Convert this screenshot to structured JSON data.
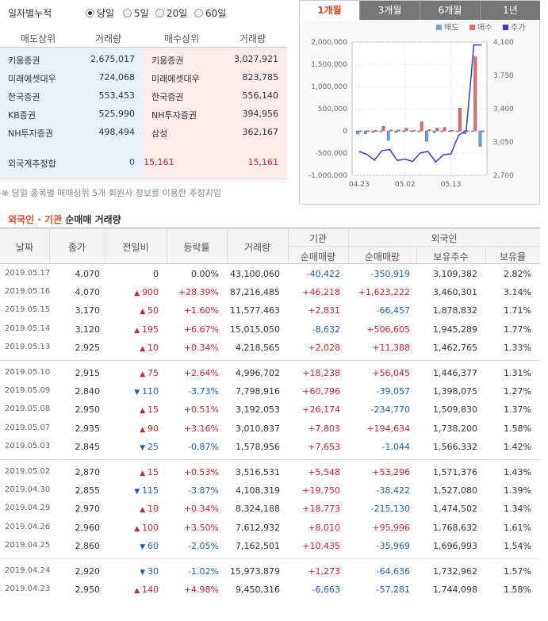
{
  "period": {
    "title": "일자별누적",
    "options": [
      {
        "label": "당일",
        "selected": true
      },
      {
        "label": "5일",
        "selected": false
      },
      {
        "label": "20일",
        "selected": false
      },
      {
        "label": "60일",
        "selected": false
      }
    ]
  },
  "trade": {
    "headers": [
      "매도상위",
      "거래량",
      "매수상위",
      "거래량"
    ],
    "rows": [
      {
        "sell": "키움증권",
        "sell_vol": "2,675,017",
        "buy": "키움증권",
        "buy_vol": "3,027,921"
      },
      {
        "sell": "미래에셋대우",
        "sell_vol": "724,068",
        "buy": "미래에셋대우",
        "buy_vol": "823,785"
      },
      {
        "sell": "한국증권",
        "sell_vol": "553,453",
        "buy": "한국증권",
        "buy_vol": "556,140"
      },
      {
        "sell": "KB증권",
        "sell_vol": "525,990",
        "buy": "NH투자증권",
        "buy_vol": "394,956"
      },
      {
        "sell": "NH투자증권",
        "sell_vol": "498,494",
        "buy": "삼성",
        "buy_vol": "362,167"
      }
    ],
    "foreign": {
      "label": "외국계추정합",
      "sell_vol": "0",
      "buy_mid": "15,161",
      "buy_vol": "15,161"
    }
  },
  "footnote": "※ 당일 종목별 매매상위 5개 회원사 정보를 이용한 추정치임",
  "chart": {
    "tabs": [
      {
        "label": "1개월",
        "active": true
      },
      {
        "label": "3개월",
        "active": false
      },
      {
        "label": "6개월",
        "active": false
      },
      {
        "label": "1년",
        "active": false
      }
    ],
    "legend": [
      {
        "name": "매도",
        "color": "#6aa3e0"
      },
      {
        "name": "매수",
        "color": "#e86a6a"
      },
      {
        "name": "주가",
        "color": "#3a3ae0"
      }
    ]
  },
  "chart_data": {
    "type": "bar",
    "x": [
      "04.23",
      "04.24",
      "04.25",
      "04.26",
      "04.29",
      "04.30",
      "05.02",
      "05.03",
      "05.07",
      "05.08",
      "05.09",
      "05.10",
      "05.13",
      "05.14",
      "05.15",
      "05.16",
      "05.17"
    ],
    "x_tick_labels": [
      "04.23",
      "05.02",
      "05.13"
    ],
    "series": [
      {
        "name": "매도",
        "type": "bar",
        "values": [
          -70000,
          -65000,
          -36000,
          0,
          -215000,
          -38000,
          0,
          -1000,
          0,
          -235000,
          -39000,
          0,
          0,
          0,
          -66000,
          0,
          -351000
        ]
      },
      {
        "name": "매수",
        "type": "bar",
        "values": [
          0,
          1000,
          10000,
          104000,
          19000,
          20000,
          59000,
          8000,
          202000,
          26000,
          61000,
          74000,
          13000,
          515000,
          3000,
          1669000,
          0
        ]
      },
      {
        "name": "주가",
        "type": "line",
        "values": [
          2950,
          2920,
          2860,
          2960,
          2970,
          2855,
          2870,
          2845,
          2935,
          2950,
          2840,
          2915,
          2925,
          3120,
          3170,
          4070,
          4070
        ]
      }
    ],
    "left_axis": {
      "ticks": [
        "2,000,000",
        "1,500,000",
        "1,000,000",
        "500,000",
        "0",
        "-500,000",
        "-1,000,000"
      ],
      "min": -1000000,
      "max": 2000000
    },
    "right_axis": {
      "ticks": [
        "4,100",
        "3,750",
        "3,400",
        "3,050",
        "2,700"
      ],
      "min": 2700,
      "max": 4100
    },
    "grid": true,
    "legend_position": "top-right"
  },
  "section": {
    "title_a": "외국인 · 기관",
    "title_b": " 순매매 거래량"
  },
  "table": {
    "headers": {
      "date": "날짜",
      "close": "종가",
      "change": "전일비",
      "rate": "등락률",
      "volume": "거래량",
      "inst_group": "기관",
      "inst_net": "순매매량",
      "frgn_group": "외국인",
      "frgn_net": "순매매량",
      "frgn_hold": "보유주수",
      "frgn_ratio": "보유율"
    },
    "rows": [
      {
        "date": "2019.05.17",
        "close": "4,070",
        "dir": "none",
        "change": "0",
        "rate": "0.00%",
        "volume": "43,100,060",
        "inst": "-40,422",
        "frgn": "-350,919",
        "hold": "3,109,382",
        "ratio": "2.82%"
      },
      {
        "date": "2019.05.16",
        "close": "4,070",
        "dir": "up",
        "change": "900",
        "rate": "+28.39%",
        "volume": "87,216,485",
        "inst": "+46,218",
        "frgn": "+1,623,222",
        "hold": "3,460,301",
        "ratio": "3.14%"
      },
      {
        "date": "2019.05.15",
        "close": "3,170",
        "dir": "up",
        "change": "50",
        "rate": "+1.60%",
        "volume": "11,577,463",
        "inst": "+2,831",
        "frgn": "-66,457",
        "hold": "1,878,832",
        "ratio": "1.71%"
      },
      {
        "date": "2019.05.14",
        "close": "3,120",
        "dir": "up",
        "change": "195",
        "rate": "+6.67%",
        "volume": "15,015,050",
        "inst": "-8,632",
        "frgn": "+506,605",
        "hold": "1,945,289",
        "ratio": "1.77%"
      },
      {
        "date": "2019.05.13",
        "close": "2,925",
        "dir": "up",
        "change": "10",
        "rate": "+0.34%",
        "volume": "4,218,565",
        "inst": "+2,028",
        "frgn": "+11,388",
        "hold": "1,462,765",
        "ratio": "1.33%"
      },
      {
        "date": "2019.05.10",
        "close": "2,915",
        "dir": "up",
        "change": "75",
        "rate": "+2.64%",
        "volume": "4,996,702",
        "inst": "+18,238",
        "frgn": "+56,045",
        "hold": "1,446,377",
        "ratio": "1.31%"
      },
      {
        "date": "2019.05.09",
        "close": "2,840",
        "dir": "down",
        "change": "110",
        "rate": "-3.73%",
        "volume": "7,798,916",
        "inst": "+60,796",
        "frgn": "-39,057",
        "hold": "1,398,075",
        "ratio": "1.27%"
      },
      {
        "date": "2019.05.08",
        "close": "2,950",
        "dir": "up",
        "change": "15",
        "rate": "+0.51%",
        "volume": "3,192,053",
        "inst": "+26,174",
        "frgn": "-234,770",
        "hold": "1,509,830",
        "ratio": "1.37%"
      },
      {
        "date": "2019.05.07",
        "close": "2,935",
        "dir": "up",
        "change": "90",
        "rate": "+3.16%",
        "volume": "3,010,837",
        "inst": "+7,803",
        "frgn": "+194,634",
        "hold": "1,738,200",
        "ratio": "1.58%"
      },
      {
        "date": "2019.05.03",
        "close": "2,845",
        "dir": "down",
        "change": "25",
        "rate": "-0.87%",
        "volume": "1,578,956",
        "inst": "+7,653",
        "frgn": "-1,044",
        "hold": "1,566,332",
        "ratio": "1.42%"
      },
      {
        "date": "2019.05.02",
        "close": "2,870",
        "dir": "up",
        "change": "15",
        "rate": "+0.53%",
        "volume": "3,516,531",
        "inst": "+5,548",
        "frgn": "+53,296",
        "hold": "1,571,376",
        "ratio": "1.43%"
      },
      {
        "date": "2019.04.30",
        "close": "2,855",
        "dir": "down",
        "change": "115",
        "rate": "-3.87%",
        "volume": "4,108,319",
        "inst": "+19,750",
        "frgn": "-38,422",
        "hold": "1,527,080",
        "ratio": "1.39%"
      },
      {
        "date": "2019.04.29",
        "close": "2,970",
        "dir": "up",
        "change": "10",
        "rate": "+0.34%",
        "volume": "8,324,188",
        "inst": "+18,773",
        "frgn": "-215,130",
        "hold": "1,474,502",
        "ratio": "1.34%"
      },
      {
        "date": "2019.04.26",
        "close": "2,960",
        "dir": "up",
        "change": "100",
        "rate": "+3.50%",
        "volume": "7,612,932",
        "inst": "+8,010",
        "frgn": "+95,996",
        "hold": "1,768,632",
        "ratio": "1.61%"
      },
      {
        "date": "2019.04.25",
        "close": "2,860",
        "dir": "down",
        "change": "60",
        "rate": "-2.05%",
        "volume": "7,162,501",
        "inst": "+10,435",
        "frgn": "-35,969",
        "hold": "1,696,993",
        "ratio": "1.54%"
      },
      {
        "date": "2019.04.24",
        "close": "2,920",
        "dir": "down",
        "change": "30",
        "rate": "-1.02%",
        "volume": "15,973,879",
        "inst": "+1,273",
        "frgn": "-64,636",
        "hold": "1,732,962",
        "ratio": "1.57%"
      },
      {
        "date": "2019.04.23",
        "close": "2,950",
        "dir": "up",
        "change": "140",
        "rate": "+4.98%",
        "volume": "9,450,316",
        "inst": "-6,663",
        "frgn": "-57,281",
        "hold": "1,744,098",
        "ratio": "1.58%"
      }
    ]
  }
}
